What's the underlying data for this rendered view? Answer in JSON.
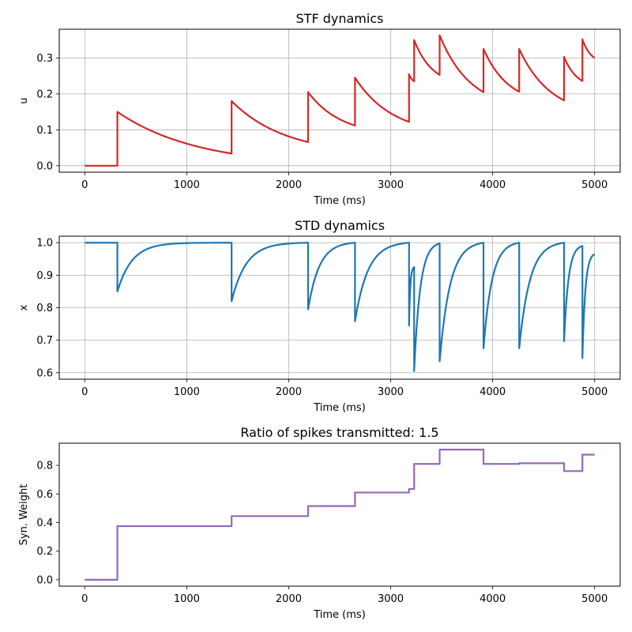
{
  "chart_data": [
    {
      "type": "line",
      "title": "STF dynamics",
      "xlabel": "Time (ms)",
      "ylabel": "u",
      "xlim": [
        -250,
        5250
      ],
      "ylim": [
        -0.018,
        0.38
      ],
      "xticks": [
        0,
        1000,
        2000,
        3000,
        4000,
        5000
      ],
      "yticks": [
        0.0,
        0.1,
        0.2,
        0.3
      ],
      "ytick_labels": [
        "0.0",
        "0.1",
        "0.2",
        "0.3"
      ],
      "grid": true,
      "color": "#d62728",
      "spike_times": [
        320,
        1440,
        2190,
        2650,
        3180,
        3230,
        3480,
        3910,
        4260,
        4700,
        4880
      ],
      "x": [
        0,
        320,
        320,
        1440,
        1440,
        2190,
        2190,
        2650,
        2650,
        3180,
        3180,
        3230,
        3230,
        3480,
        3480,
        3910,
        3910,
        4260,
        4260,
        4700,
        4700,
        4880,
        4880,
        5000
      ],
      "y": [
        0.0,
        0.0,
        0.15,
        0.034,
        0.18,
        0.066,
        0.205,
        0.112,
        0.245,
        0.122,
        0.255,
        0.235,
        0.35,
        0.253,
        0.363,
        0.205,
        0.325,
        0.206,
        0.325,
        0.182,
        0.303,
        0.236,
        0.352,
        0.3
      ],
      "segment_shape": "decay"
    },
    {
      "type": "line",
      "title": "STD dynamics",
      "xlabel": "Time (ms)",
      "ylabel": "x",
      "xlim": [
        -250,
        5250
      ],
      "ylim": [
        0.58,
        1.02
      ],
      "xticks": [
        0,
        1000,
        2000,
        3000,
        4000,
        5000
      ],
      "yticks": [
        0.6,
        0.7,
        0.8,
        0.9,
        1.0
      ],
      "ytick_labels": [
        "0.6",
        "0.7",
        "0.8",
        "0.9",
        "1.0"
      ],
      "grid": true,
      "color": "#1f77b4",
      "spike_times": [
        320,
        1440,
        2190,
        2650,
        3180,
        3230,
        3480,
        3910,
        4260,
        4700,
        4880
      ],
      "x": [
        0,
        320,
        320,
        1440,
        1440,
        2190,
        2190,
        2650,
        2650,
        3180,
        3180,
        3230,
        3230,
        3480,
        3480,
        3910,
        3910,
        4260,
        4260,
        4700,
        4700,
        4880,
        4880,
        5000
      ],
      "y": [
        1.0,
        1.0,
        0.85,
        1.0,
        0.82,
        1.0,
        0.795,
        1.0,
        0.758,
        1.0,
        0.745,
        0.925,
        0.605,
        0.998,
        0.635,
        1.0,
        0.675,
        1.0,
        0.675,
        1.0,
        0.697,
        0.99,
        0.645,
        0.965
      ],
      "segment_shape": "recovery"
    },
    {
      "type": "line",
      "title": "Ratio of spikes transmitted: 1.5",
      "xlabel": "Time (ms)",
      "ylabel": "Syn. Weight",
      "xlim": [
        -250,
        5250
      ],
      "ylim": [
        -0.045,
        0.955
      ],
      "xticks": [
        0,
        1000,
        2000,
        3000,
        4000,
        5000
      ],
      "yticks": [
        0.0,
        0.2,
        0.4,
        0.6,
        0.8
      ],
      "ytick_labels": [
        "0.0",
        "0.2",
        "0.4",
        "0.6",
        "0.8"
      ],
      "grid": false,
      "color": "#9467bd",
      "step": true,
      "x": [
        0,
        320,
        1440,
        2190,
        2650,
        3180,
        3230,
        3480,
        3910,
        4260,
        4700,
        4880,
        5000
      ],
      "y": [
        0.0,
        0.375,
        0.445,
        0.515,
        0.61,
        0.635,
        0.81,
        0.91,
        0.81,
        0.815,
        0.76,
        0.875,
        0.875
      ]
    }
  ]
}
